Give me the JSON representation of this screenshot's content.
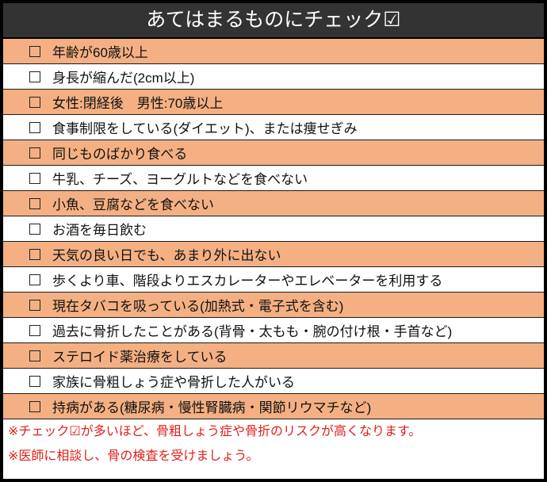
{
  "title": "あてはまるものにチェック☑",
  "items": [
    "年齢が60歳以上",
    "身長が縮んだ(2cm以上)",
    "女性:閉経後　男性:70歳以上",
    "食事制限をしている(ダイエット)、または痩せぎみ",
    "同じものばかり食べる",
    "牛乳、チーズ、ヨーグルトなどを食べない",
    "小魚、豆腐などを食べない",
    "お酒を毎日飲む",
    "天気の良い日でも、あまり外に出ない",
    "歩くより車、階段よりエスカレーターやエレベーターを利用する",
    "現在タバコを吸っている(加熱式・電子式を含む)",
    "過去に骨折したことがある(背骨・太もも・腕の付け根・手首など)",
    "ステロイド薬治療をしている",
    "家族に骨粗しょう症や骨折した人がいる",
    "持病がある(糖尿病・慢性腎臓病・関節リウマチなど)"
  ],
  "notes": [
    "※チェック☑が多いほど、骨粗しょう症や骨折のリスクが高くなります。",
    "※医師に相談し、骨の検査を受けましょう。"
  ],
  "colors": {
    "header_bg": "#333333",
    "odd_row": "#F4B083",
    "note_text": "#E0201B"
  }
}
